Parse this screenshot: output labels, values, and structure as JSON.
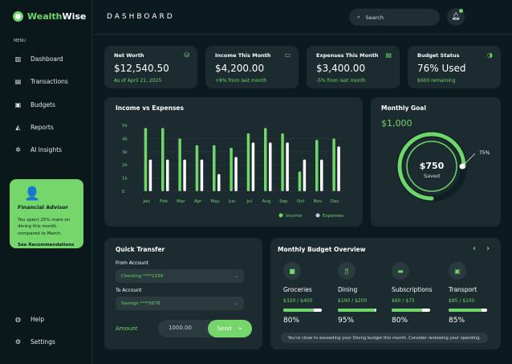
{
  "app": {
    "name_a": "Wealth",
    "name_b": "Wise"
  },
  "sidebar": {
    "menu_label": "MENU",
    "items": [
      {
        "label": "Dashboard",
        "icon": "chart-icon"
      },
      {
        "label": "Transactions",
        "icon": "receipt-icon"
      },
      {
        "label": "Budgets",
        "icon": "wallet-icon"
      },
      {
        "label": "Reports",
        "icon": "report-icon"
      },
      {
        "label": "AI Insights",
        "icon": "ai-icon"
      }
    ],
    "advisor": {
      "title": "Financial Advisor",
      "text": "You spent 25% more on dining this month compared to March.",
      "link": "See Recommendations →"
    },
    "help": "Help",
    "settings": "Settings"
  },
  "header": {
    "title": "DASHBOARD",
    "search_placeholder": "Search"
  },
  "stats": [
    {
      "title": "Net Worth",
      "value": "$12,540.50",
      "sub": "As of April 21, 2025",
      "icon": "money-bag-icon"
    },
    {
      "title": "Income This Month",
      "value": "$4,200.00",
      "sub": "+8% from last month",
      "icon": "cash-icon"
    },
    {
      "title": "Expenses This Month",
      "value": "$3,400.00",
      "sub": "-5% from last month",
      "icon": "receipt-icon"
    },
    {
      "title": "Budget Status",
      "value": "76% Used",
      "sub": "$600 remaining",
      "icon": "pie-icon"
    }
  ],
  "chart_data": {
    "type": "bar",
    "title": "Income vs Expenses",
    "categories": [
      "Jan",
      "Feb",
      "Mar",
      "Apr",
      "May",
      "Jun",
      "Jul",
      "Aug",
      "Sep",
      "Oct",
      "Nov",
      "Dec"
    ],
    "yticks": [
      "0",
      "1k",
      "2k",
      "3k",
      "4k",
      "5k"
    ],
    "ylim": [
      0,
      5000
    ],
    "grid": true,
    "legend": "bottom-right",
    "series": [
      {
        "name": "Income",
        "color": "#6fd66a",
        "values": [
          4800,
          4800,
          4000,
          3500,
          3500,
          3300,
          4400,
          4800,
          4400,
          1500,
          3900,
          4000
        ]
      },
      {
        "name": "Expenses",
        "color": "#ffffff",
        "values": [
          2400,
          2400,
          2400,
          2400,
          1300,
          2600,
          3700,
          3700,
          3700,
          2400,
          2400,
          3400
        ]
      }
    ]
  },
  "goal": {
    "title": "Monthly Goal",
    "target": "$1,000",
    "saved_value": "$750",
    "saved_label": "Saved",
    "percent_label": "75%",
    "progress": 0.75
  },
  "transfer": {
    "title": "Quick Transfer",
    "from_label": "From Account",
    "from_value": "Checking ****1234",
    "to_label": "To Account",
    "to_value": "Savings ****5678",
    "amount_label": "Amount",
    "amount_value": "1000.00",
    "send": "Send"
  },
  "budget": {
    "title": "Monthly Budget Overview",
    "items": [
      {
        "name": "Groceries",
        "amount": "$320 / $400",
        "percent": "80%",
        "fill": 80,
        "icon": "shopping-bag-icon"
      },
      {
        "name": "Dining",
        "amount": "$190 / $200",
        "percent": "95%",
        "fill": 95,
        "icon": "dining-icon"
      },
      {
        "name": "Subscriptions",
        "amount": "$60 / $75",
        "percent": "80%",
        "fill": 80,
        "icon": "tv-icon"
      },
      {
        "name": "Transport",
        "amount": "$85 / $100",
        "percent": "85%",
        "fill": 85,
        "icon": "bus-icon"
      }
    ],
    "note": "You're close to exceeding your Dining budget this month. Consider reviewing your spending."
  }
}
